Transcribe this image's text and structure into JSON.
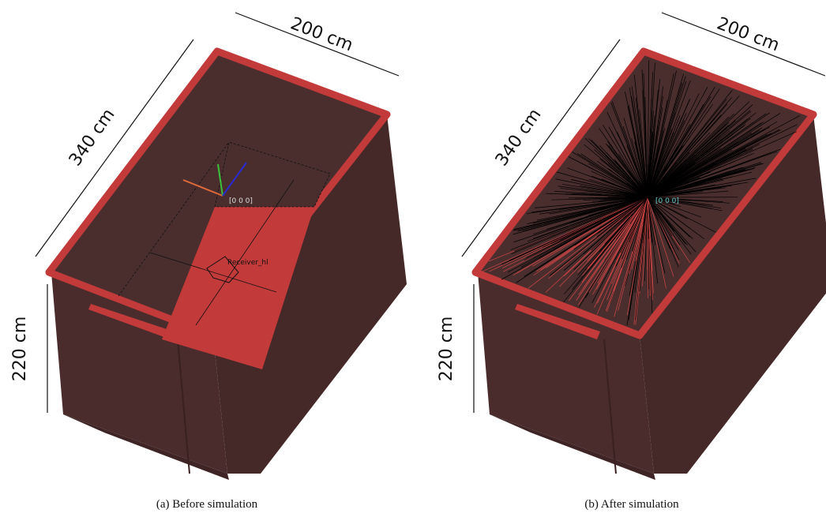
{
  "panels": [
    {
      "caption": "(a) Before simulation",
      "width_label": "200 cm",
      "length_label": "340 cm",
      "height_label": "220 cm",
      "origin_label": "[0 0 0]",
      "receiver_label": "Receiver_hl"
    },
    {
      "caption": "(b) After simulation",
      "width_label": "200 cm",
      "length_label": "340 cm",
      "height_label": "220 cm",
      "origin_label": "[0 0 0]"
    }
  ]
}
